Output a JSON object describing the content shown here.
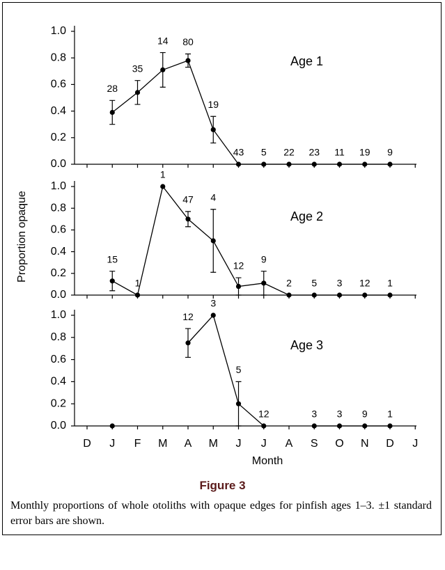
{
  "chart_data": [
    {
      "type": "line",
      "title": "Age 1",
      "values": [
        null,
        0.39,
        0.54,
        0.71,
        0.78,
        0.26,
        0,
        0,
        0,
        0,
        0,
        0,
        0,
        null
      ],
      "errors": [
        null,
        0.09,
        0.09,
        0.13,
        0.05,
        0.1,
        null,
        null,
        null,
        null,
        null,
        null,
        null,
        null
      ],
      "sample_sizes": [
        null,
        28,
        35,
        14,
        80,
        19,
        43,
        5,
        22,
        23,
        11,
        19,
        9,
        null
      ],
      "color": "#000000",
      "ylim": [
        0,
        1
      ],
      "yticks": [
        {
          "value": 0,
          "label": "0.0"
        },
        {
          "value": 0.2,
          "label": "0.2"
        },
        {
          "value": 0.4,
          "label": "0.4"
        },
        {
          "value": 0.6,
          "label": "0.6"
        },
        {
          "value": 0.8,
          "label": "0.8"
        },
        {
          "value": 1,
          "label": "1.0"
        }
      ]
    },
    {
      "type": "line",
      "title": "Age 2",
      "ylabel": "Proportion opaque",
      "values": [
        null,
        0.13,
        0,
        1,
        0.7,
        0.5,
        0.08,
        0.11,
        0,
        0,
        0,
        0,
        0,
        null
      ],
      "errors": [
        null,
        0.09,
        null,
        null,
        0.07,
        0.29,
        0.08,
        0.11,
        null,
        null,
        null,
        null,
        null,
        null
      ],
      "sample_sizes": [
        null,
        15,
        1,
        1,
        47,
        4,
        12,
        9,
        2,
        5,
        3,
        12,
        1,
        null
      ],
      "color": "#000000",
      "ylim": [
        0,
        1
      ],
      "yticks": [
        {
          "value": 0,
          "label": "0.0"
        },
        {
          "value": 0.2,
          "label": "0.2"
        },
        {
          "value": 0.4,
          "label": "0.4"
        },
        {
          "value": 0.6,
          "label": "0.6"
        },
        {
          "value": 0.8,
          "label": "0.8"
        },
        {
          "value": 1,
          "label": "1.0"
        }
      ]
    },
    {
      "type": "line",
      "title": "Age 3",
      "xlabel": "Month",
      "categories": [
        "D",
        "J",
        "F",
        "M",
        "A",
        "M",
        "J",
        "J",
        "A",
        "S",
        "O",
        "N",
        "D",
        "J"
      ],
      "values": [
        null,
        0,
        null,
        null,
        0.75,
        1,
        0.2,
        0,
        null,
        0,
        0,
        0,
        0,
        null
      ],
      "errors": [
        null,
        null,
        null,
        null,
        0.13,
        null,
        0.2,
        null,
        null,
        null,
        null,
        null,
        null,
        null
      ],
      "sample_sizes": [
        null,
        null,
        null,
        null,
        12,
        3,
        5,
        12,
        null,
        3,
        3,
        9,
        1,
        null
      ],
      "color": "#000000",
      "ylim": [
        0,
        1
      ],
      "yticks": [
        {
          "value": 0,
          "label": "0.0"
        },
        {
          "value": 0.2,
          "label": "0.2"
        },
        {
          "value": 0.4,
          "label": "0.4"
        },
        {
          "value": 0.6,
          "label": "0.6"
        },
        {
          "value": 0.8,
          "label": "0.8"
        },
        {
          "value": 1,
          "label": "1.0"
        }
      ]
    }
  ],
  "figure": {
    "label": "Figure 3",
    "caption": "Monthly proportions of whole otoliths with opaque edges for pinfish ages 1–3. ±1 standard error bars are shown."
  }
}
